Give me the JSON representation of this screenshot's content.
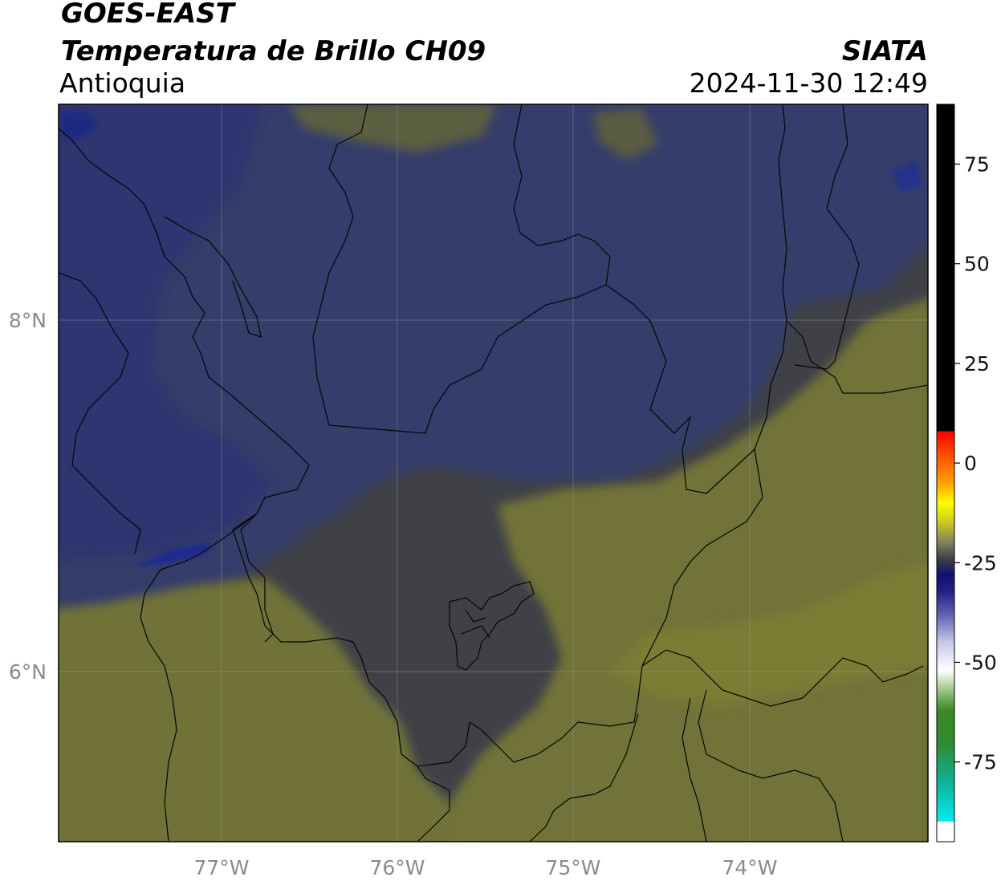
{
  "header": {
    "satellite": "GOES-EAST",
    "product": "Temperatura de Brillo CH09",
    "region": "Antioquia",
    "agency": "SIATA",
    "timestamp": "2024-11-30 12:49"
  },
  "map": {
    "lon_range": [
      -77.95,
      -73.0
    ],
    "lat_range": [
      4.95,
      9.15
    ],
    "lon_ticks": [
      {
        "value": -77,
        "label": "77°W"
      },
      {
        "value": -76,
        "label": "76°W"
      },
      {
        "value": -75,
        "label": "75°W"
      },
      {
        "value": -74,
        "label": "74°W"
      }
    ],
    "lat_ticks": [
      {
        "value": 8,
        "label": "8°N"
      },
      {
        "value": 6,
        "label": "6°N"
      }
    ],
    "gridlines": true,
    "colors": {
      "blue_region": "#343c6c",
      "gray_region": "#3f4147",
      "olive_region": "#72733a",
      "dark_blue_core": "#1a2a8a"
    }
  },
  "colorbar": {
    "range": [
      -95,
      90
    ],
    "ticks": [
      {
        "value": 75,
        "label": "75"
      },
      {
        "value": 50,
        "label": "50"
      },
      {
        "value": 25,
        "label": "25"
      },
      {
        "value": 0,
        "label": "0"
      },
      {
        "value": -25,
        "label": "-25"
      },
      {
        "value": -50,
        "label": "-50"
      },
      {
        "value": -75,
        "label": "-75"
      }
    ],
    "stops": [
      {
        "value": -95,
        "color": "#ffffff"
      },
      {
        "value": -90,
        "color": "#ffffff"
      },
      {
        "value": -90,
        "color": "#00eeee"
      },
      {
        "value": -80,
        "color": "#10b09a"
      },
      {
        "value": -70,
        "color": "#2e8b2e"
      },
      {
        "value": -62,
        "color": "#3e8a24"
      },
      {
        "value": -58,
        "color": "#8ab870"
      },
      {
        "value": -52,
        "color": "#ffffff"
      },
      {
        "value": -45,
        "color": "#c8c8e8"
      },
      {
        "value": -38,
        "color": "#6060b0"
      },
      {
        "value": -32,
        "color": "#20208a"
      },
      {
        "value": -28,
        "color": "#101070"
      },
      {
        "value": -24,
        "color": "#404048"
      },
      {
        "value": -20,
        "color": "#808060"
      },
      {
        "value": -15,
        "color": "#c8c820"
      },
      {
        "value": -10,
        "color": "#ffff00"
      },
      {
        "value": -5,
        "color": "#ffa000"
      },
      {
        "value": 2,
        "color": "#ff5000"
      },
      {
        "value": 8,
        "color": "#ff0000"
      },
      {
        "value": 8,
        "color": "#000000"
      },
      {
        "value": 90,
        "color": "#000000"
      }
    ]
  }
}
